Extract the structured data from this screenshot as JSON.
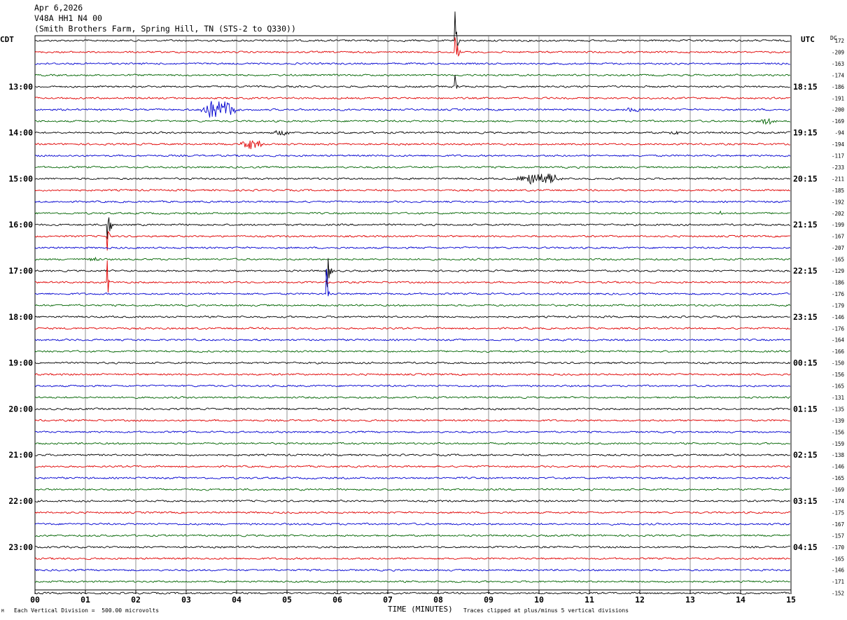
{
  "header": {
    "date": "Apr 6,2026",
    "station": "V48A HH1 N4 00",
    "location": "(Smith Brothers Farm, Spring Hill, TN (STS-2 to Q330))"
  },
  "left_zone_label": "CDT",
  "right_zone_label": "UTC",
  "dc_label": "DC",
  "footer": {
    "scale_note": "Each Vertical Division =  500.00 microvolts",
    "axis_title": "TIME (MINUTES)",
    "clip_note": "Traces clipped at plus/minus 5 vertical divisions",
    "corner_mark": "M"
  },
  "colors": {
    "black": "#000000",
    "red": "#e00000",
    "blue": "#0000d0",
    "green": "#006400",
    "grid": "#777777"
  },
  "chart_data": {
    "type": "line",
    "title": "V48A HH1 N4 00",
    "xlabel": "TIME (MINUTES)",
    "xlim": [
      0,
      15
    ],
    "x_ticks": [
      "00",
      "01",
      "02",
      "03",
      "04",
      "05",
      "06",
      "07",
      "08",
      "09",
      "10",
      "11",
      "12",
      "13",
      "14",
      "15"
    ],
    "trace_colors_cycle": [
      "black",
      "red",
      "blue",
      "green"
    ],
    "cdt_hour_labels": [
      "13:00",
      "14:00",
      "15:00",
      "16:00",
      "17:00",
      "18:00",
      "19:00",
      "20:00",
      "21:00",
      "22:00",
      "23:00"
    ],
    "utc_hour_labels": [
      "18:15",
      "19:15",
      "20:15",
      "21:15",
      "22:15",
      "23:15",
      "00:15",
      "01:15",
      "02:15",
      "03:15",
      "04:15"
    ],
    "dc_offsets": [
      172,
      -209,
      -163,
      -174,
      -186,
      -191,
      -200,
      -169,
      -94,
      -194,
      -117,
      -233,
      -211,
      -185,
      -192,
      -202,
      -199,
      -167,
      -207,
      -165,
      -129,
      -186,
      -176,
      -179,
      -146,
      -176,
      -164,
      -166,
      -150,
      -156,
      -165,
      -131,
      -135,
      -139,
      -156,
      -159,
      -138,
      -146,
      -165,
      -169,
      -174,
      -175,
      -167,
      -157,
      -170,
      -165,
      -146,
      -171,
      -152
    ],
    "events": [
      {
        "trace": 0,
        "minute": 8.35,
        "amplitude": 1.6,
        "duration_min": 0.08,
        "kind": "spike"
      },
      {
        "trace": 1,
        "minute": 8.35,
        "amplitude": 1.5,
        "duration_min": 0.1,
        "kind": "spike"
      },
      {
        "trace": 4,
        "minute": 8.35,
        "amplitude": 1.0,
        "duration_min": 0.05,
        "kind": "spike"
      },
      {
        "trace": 6,
        "minute": 3.2,
        "amplitude": 0.85,
        "duration_min": 0.9,
        "kind": "quake"
      },
      {
        "trace": 6,
        "minute": 11.6,
        "amplitude": 0.2,
        "duration_min": 0.6,
        "kind": "quake"
      },
      {
        "trace": 7,
        "minute": 14.3,
        "amplitude": 0.25,
        "duration_min": 0.5,
        "kind": "quake"
      },
      {
        "trace": 8,
        "minute": 4.7,
        "amplitude": 0.2,
        "duration_min": 0.4,
        "kind": "quake"
      },
      {
        "trace": 8,
        "minute": 12.45,
        "amplitude": 0.22,
        "duration_min": 0.4,
        "kind": "quake"
      },
      {
        "trace": 9,
        "minute": 4.0,
        "amplitude": 0.4,
        "duration_min": 0.6,
        "kind": "quake"
      },
      {
        "trace": 12,
        "minute": 9.5,
        "amplitude": 0.55,
        "duration_min": 1.0,
        "kind": "quake"
      },
      {
        "trace": 15,
        "minute": 13.6,
        "amplitude": 0.3,
        "duration_min": 0.05,
        "kind": "spike"
      },
      {
        "trace": 16,
        "minute": 1.45,
        "amplitude": 1.4,
        "duration_min": 0.12,
        "kind": "spike"
      },
      {
        "trace": 17,
        "minute": 1.45,
        "amplitude": 1.0,
        "duration_min": 0.06,
        "kind": "spike"
      },
      {
        "trace": 19,
        "minute": 1.05,
        "amplitude": 0.2,
        "duration_min": 0.3,
        "kind": "quake"
      },
      {
        "trace": 20,
        "minute": 5.8,
        "amplitude": 1.6,
        "duration_min": 0.12,
        "kind": "spike"
      },
      {
        "trace": 21,
        "minute": 1.45,
        "amplitude": 0.9,
        "duration_min": 0.05,
        "kind": "spike"
      },
      {
        "trace": 22,
        "minute": 5.8,
        "amplitude": 1.2,
        "duration_min": 0.05,
        "kind": "spike"
      }
    ]
  }
}
